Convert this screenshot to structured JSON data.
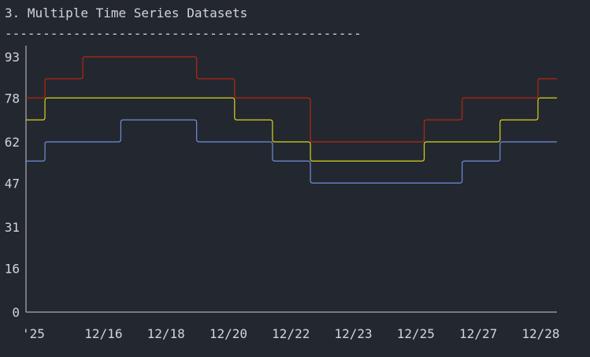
{
  "page": {
    "title": "3. Multiple Time Series Datasets",
    "rule": "-----------------------------------------------"
  },
  "chart_data": {
    "type": "line",
    "step": true,
    "title": "3. Multiple Time Series Datasets",
    "xlabel": "",
    "ylabel": "",
    "ylim": [
      0,
      93
    ],
    "y_ticks": [
      0,
      16,
      31,
      47,
      62,
      78,
      93
    ],
    "x_tick_labels": [
      "'25",
      "12/16",
      "12/18",
      "12/20",
      "12/22",
      "12/23",
      "12/25",
      "12/27",
      "12/28"
    ],
    "x": [
      "2025-12-15",
      "2025-12-16",
      "2025-12-17",
      "2025-12-18",
      "2025-12-19",
      "2025-12-20",
      "2025-12-21",
      "2025-12-22",
      "2025-12-23",
      "2025-12-24",
      "2025-12-25",
      "2025-12-26",
      "2025-12-27",
      "2025-12-28",
      "2025-12-29"
    ],
    "grid": false,
    "legend": "none",
    "series": [
      {
        "color": "#6f8ed8",
        "values": [
          55,
          62,
          62,
          70,
          70,
          62,
          62,
          55,
          47,
          47,
          47,
          47,
          55,
          62,
          62
        ]
      },
      {
        "color": "#d8d21c",
        "values": [
          70,
          78,
          78,
          78,
          78,
          78,
          70,
          62,
          55,
          55,
          55,
          62,
          62,
          70,
          78
        ]
      },
      {
        "color": "#b82410",
        "values": [
          78,
          85,
          93,
          93,
          93,
          85,
          78,
          78,
          62,
          62,
          62,
          70,
          78,
          78,
          85
        ]
      }
    ]
  }
}
